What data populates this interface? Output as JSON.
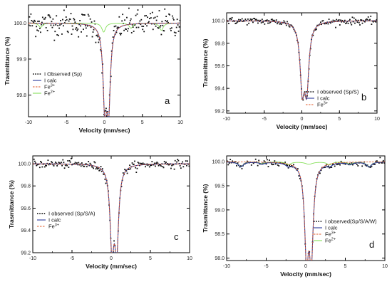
{
  "chart_data": [
    {
      "type": "line",
      "panel_label": "a",
      "xlabel": "Velocity (mm/sec)",
      "ylabel": "Trasmittance (%)",
      "xlim": [
        -10,
        10
      ],
      "ylim": [
        99.74,
        100.05
      ],
      "x_ticks": [
        -10,
        -5,
        0,
        5,
        10
      ],
      "y_ticks": [
        99.8,
        99.9,
        100.0
      ],
      "y_tick_labels": [
        "99.8",
        "99.9",
        "100.0"
      ],
      "legend": {
        "placement": "bottom-left",
        "entries": [
          {
            "label": "I Observed (Sp)",
            "style": "dots",
            "color": "#000000"
          },
          {
            "label": "I calc",
            "style": "solid",
            "color": "#2b3a9b"
          },
          {
            "label": "Fe",
            "sup": "3+",
            "style": "dash",
            "color": "#e05a2a"
          },
          {
            "label": "Fe",
            "sup": "2+",
            "style": "solid",
            "color": "#86e05a"
          }
        ]
      },
      "series": [
        {
          "role": "calc",
          "color": "#2b3a9b",
          "baseline": 100.0,
          "lines": [
            {
              "center": 0.05,
              "depth": 0.22,
              "width": 0.28
            },
            {
              "center": 0.55,
              "depth": 0.22,
              "width": 0.28
            }
          ]
        },
        {
          "role": "fe3",
          "color": "#e05a2a",
          "baseline": 100.0,
          "lines": [
            {
              "center": 0.05,
              "depth": 0.22,
              "width": 0.28
            },
            {
              "center": 0.55,
              "depth": 0.22,
              "width": 0.28
            }
          ]
        },
        {
          "role": "fe2",
          "color": "#86e05a",
          "baseline": 100.0,
          "lines": [
            {
              "center": -8.4,
              "depth": 0.012,
              "width": 0.3
            },
            {
              "center": -0.1,
              "depth": 0.025,
              "width": 0.3
            },
            {
              "center": 3.5,
              "depth": 0.014,
              "width": 0.3
            },
            {
              "center": 7.5,
              "depth": 0.02,
              "width": 0.3
            }
          ]
        }
      ],
      "observed_noise": 0.018,
      "observed_points": 220
    },
    {
      "type": "line",
      "panel_label": "b",
      "xlabel": "Velocity (mm/sec)",
      "ylabel": "Trasmittance (%)",
      "xlim": [
        -10,
        10
      ],
      "ylim": [
        99.18,
        100.07
      ],
      "x_ticks": [
        -10,
        -5,
        0,
        5,
        10
      ],
      "y_ticks": [
        99.2,
        99.4,
        99.6,
        99.8,
        100.0
      ],
      "y_tick_labels": [
        "99.2",
        "99.4",
        "99.6",
        "99.8",
        "100.0"
      ],
      "legend": {
        "placement": "bottom-right",
        "entries": [
          {
            "label": "I observed (Sp/S)",
            "style": "dots",
            "color": "#000000"
          },
          {
            "label": "I calc",
            "style": "solid",
            "color": "#2b3a9b"
          },
          {
            "label": "Fe",
            "sup": "3+",
            "style": "dash",
            "color": "#e05a2a"
          }
        ]
      },
      "series": [
        {
          "role": "calc",
          "color": "#2b3a9b",
          "baseline": 100.0,
          "lines": [
            {
              "center": 0.05,
              "depth": 0.55,
              "width": 0.35
            },
            {
              "center": 0.65,
              "depth": 0.55,
              "width": 0.35
            }
          ]
        },
        {
          "role": "fe3",
          "color": "#e05a2a",
          "baseline": 100.0,
          "lines": [
            {
              "center": 0.05,
              "depth": 0.55,
              "width": 0.35
            },
            {
              "center": 0.65,
              "depth": 0.55,
              "width": 0.35
            }
          ]
        }
      ],
      "observed_noise": 0.015,
      "observed_points": 180
    },
    {
      "type": "line",
      "panel_label": "c",
      "xlabel": "Velocity (mm/sec)",
      "ylabel": "Trasmittance (%)",
      "xlim": [
        -10,
        10
      ],
      "ylim": [
        99.2,
        100.07
      ],
      "x_ticks": [
        -10,
        -5,
        0,
        5,
        10
      ],
      "y_ticks": [
        99.2,
        99.4,
        99.6,
        99.8,
        100.0
      ],
      "y_tick_labels": [
        "99.2",
        "99.4",
        "99.6",
        "99.8",
        "100.0"
      ],
      "legend": {
        "placement": "bottom-left",
        "entries": [
          {
            "label": "I observed (Sp/S/A)",
            "style": "dots",
            "color": "#000000"
          },
          {
            "label": "I calc",
            "style": "solid",
            "color": "#2b3a9b"
          },
          {
            "label": "Fe",
            "sup": "3+",
            "style": "dash",
            "color": "#e05a2a"
          }
        ]
      },
      "series": [
        {
          "role": "calc",
          "color": "#2b3a9b",
          "baseline": 100.0,
          "lines": [
            {
              "center": 0.1,
              "depth": 0.72,
              "width": 0.3
            },
            {
              "center": 0.7,
              "depth": 0.72,
              "width": 0.3
            }
          ]
        },
        {
          "role": "fe3",
          "color": "#e05a2a",
          "baseline": 100.0,
          "lines": [
            {
              "center": 0.1,
              "depth": 0.72,
              "width": 0.3
            },
            {
              "center": 0.7,
              "depth": 0.72,
              "width": 0.3
            }
          ]
        }
      ],
      "observed_noise": 0.018,
      "observed_points": 190
    },
    {
      "type": "line",
      "panel_label": "d",
      "xlabel": "Velocity (mm/sec)",
      "ylabel": "Trasmittance (%)",
      "xlim": [
        -10,
        10
      ],
      "ylim": [
        97.95,
        100.12
      ],
      "x_ticks": [
        -10,
        -5,
        0,
        5,
        10
      ],
      "y_ticks": [
        98.0,
        98.5,
        99.0,
        99.5,
        100.0
      ],
      "y_tick_labels": [
        "98.0",
        "98.5",
        "99.0",
        "99.5",
        "100.0"
      ],
      "legend": {
        "placement": "bottom-right",
        "entries": [
          {
            "label": "I observed(Sp/S/A/W)",
            "style": "dots",
            "color": "#000000"
          },
          {
            "label": "I calc",
            "style": "solid",
            "color": "#2b3a9b"
          },
          {
            "label": "Fe",
            "sup": "3+",
            "style": "dash",
            "color": "#e05a2a"
          },
          {
            "label": "Fe",
            "sup": "2+",
            "style": "solid",
            "color": "#86e05a"
          }
        ]
      },
      "series": [
        {
          "role": "calc",
          "color": "#2b3a9b",
          "baseline": 100.0,
          "lines": [
            {
              "center": 0.1,
              "depth": 1.85,
              "width": 0.3
            },
            {
              "center": 0.7,
              "depth": 1.85,
              "width": 0.3
            },
            {
              "center": -8.2,
              "depth": 0.1,
              "width": 0.4
            },
            {
              "center": -5.5,
              "depth": 0.04,
              "width": 0.4
            },
            {
              "center": -2.2,
              "depth": 0.06,
              "width": 0.4
            },
            {
              "center": 3.0,
              "depth": 0.06,
              "width": 0.4
            },
            {
              "center": 5.6,
              "depth": 0.05,
              "width": 0.4
            },
            {
              "center": 8.0,
              "depth": 0.1,
              "width": 0.4
            }
          ]
        },
        {
          "role": "fe3",
          "color": "#e05a2a",
          "baseline": 100.0,
          "lines": [
            {
              "center": 0.1,
              "depth": 1.85,
              "width": 0.3
            },
            {
              "center": 0.7,
              "depth": 1.85,
              "width": 0.3
            }
          ]
        },
        {
          "role": "fe2",
          "color": "#86e05a",
          "baseline": 100.0,
          "lines": [
            {
              "center": -8.2,
              "depth": 0.1,
              "width": 0.4
            },
            {
              "center": -5.5,
              "depth": 0.04,
              "width": 0.4
            },
            {
              "center": -2.2,
              "depth": 0.06,
              "width": 0.4
            },
            {
              "center": 0.4,
              "depth": 0.05,
              "width": 0.6
            },
            {
              "center": 3.0,
              "depth": 0.06,
              "width": 0.4
            },
            {
              "center": 5.6,
              "depth": 0.05,
              "width": 0.4
            },
            {
              "center": 8.0,
              "depth": 0.1,
              "width": 0.4
            }
          ]
        }
      ],
      "observed_noise": 0.03,
      "observed_points": 150
    }
  ]
}
